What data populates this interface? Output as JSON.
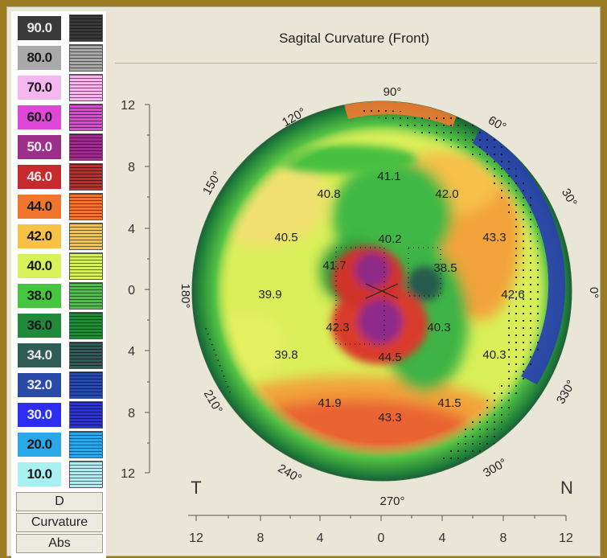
{
  "title": "Sagital Curvature (Front)",
  "scale": [
    {
      "label": "90.0",
      "color": "#3a3a3a"
    },
    {
      "label": "80.0",
      "color": "#a9a9a9"
    },
    {
      "label": "70.0",
      "color": "#f6b6f0"
    },
    {
      "label": "60.0",
      "color": "#e047d9"
    },
    {
      "label": "50.0",
      "color": "#9b2f8a"
    },
    {
      "label": "46.0",
      "color": "#c62a2f"
    },
    {
      "label": "44.0",
      "color": "#f0762d"
    },
    {
      "label": "42.0",
      "color": "#f7c246"
    },
    {
      "label": "40.0",
      "color": "#d8f25b"
    },
    {
      "label": "38.0",
      "color": "#46c640"
    },
    {
      "label": "36.0",
      "color": "#218a3a"
    },
    {
      "label": "34.0",
      "color": "#2f5c55"
    },
    {
      "label": "32.0",
      "color": "#2a4aa8"
    },
    {
      "label": "30.0",
      "color": "#2b2ef0"
    },
    {
      "label": "20.0",
      "color": "#2aa8ea"
    },
    {
      "label": "10.0",
      "color": "#a9f0f3"
    }
  ],
  "unit_label": "D",
  "mode_label": "Curvature",
  "abs_label": "Abs",
  "y_ticks": [
    "12",
    "8",
    "4",
    "0",
    "4",
    "8",
    "12"
  ],
  "x_ticks": [
    "12",
    "8",
    "4",
    "0",
    "4",
    "8",
    "12"
  ],
  "side_left": "T",
  "side_right": "N",
  "angles": [
    "90°",
    "60°",
    "30°",
    "0°",
    "330°",
    "300°",
    "270°",
    "240°",
    "210°",
    "180°",
    "150°",
    "120°"
  ],
  "values": [
    "41.1",
    "40.8",
    "42.0",
    "40.5",
    "40.2",
    "43.3",
    "41.7",
    "38.5",
    "39.9",
    "42.6",
    "42.3",
    "40.3",
    "39.8",
    "44.5",
    "40.3",
    "41.9",
    "41.5",
    "43.3"
  ]
}
